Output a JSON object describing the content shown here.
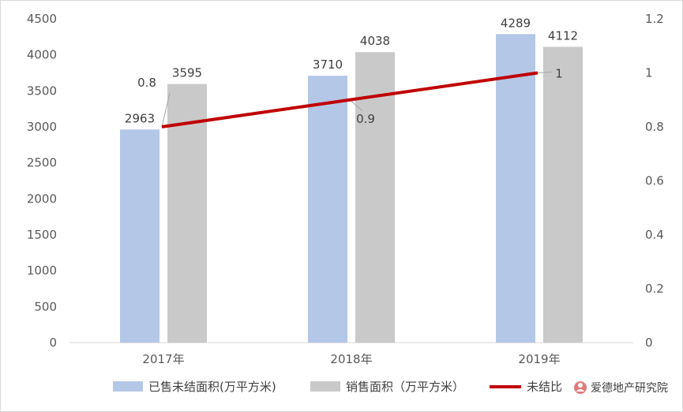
{
  "chart_data": {
    "type": "bar",
    "categories": [
      "2017年",
      "2018年",
      "2019年"
    ],
    "series": [
      {
        "name": "已售未结面积(万平方米)",
        "kind": "bar",
        "axis": "left",
        "color": "#b4c7e7",
        "values": [
          2963,
          3710,
          4289
        ]
      },
      {
        "name": "销售面积（万平方米）",
        "kind": "bar",
        "axis": "left",
        "color": "#c9c9c9",
        "values": [
          3595,
          4038,
          4112
        ]
      },
      {
        "name": "未结比",
        "kind": "line",
        "axis": "right",
        "color": "#c00000",
        "values": [
          0.8,
          0.9,
          1
        ]
      }
    ],
    "data_labels": {
      "bars": [
        [
          "2963",
          "3710",
          "4289"
        ],
        [
          "3595",
          "4038",
          "4112"
        ]
      ],
      "line": [
        "0.8",
        "0.9",
        "1"
      ]
    },
    "y_left": {
      "min": 0,
      "max": 4500,
      "ticks": [
        "0",
        "500",
        "1000",
        "1500",
        "2000",
        "2500",
        "3000",
        "3500",
        "4000",
        "4500"
      ]
    },
    "y_right": {
      "min": 0,
      "max": 1.2,
      "ticks": [
        "0",
        "0.2",
        "0.4",
        "0.6",
        "0.8",
        "1",
        "1.2"
      ]
    },
    "legend_position": "bottom"
  },
  "watermark": {
    "text": "爱德地产研究院",
    "icon": "person-icon"
  }
}
